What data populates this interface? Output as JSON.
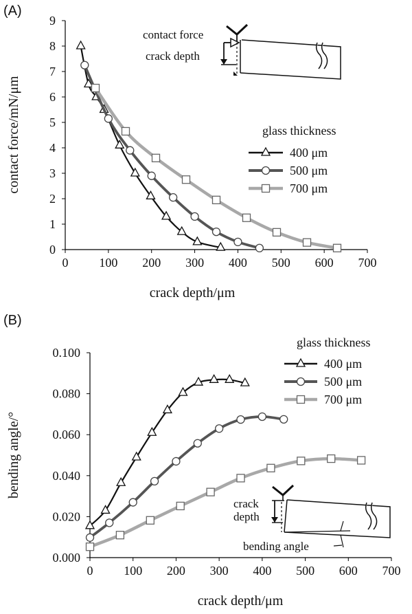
{
  "chart_data": [
    {
      "panel_label": "(A)",
      "type": "line",
      "xlabel": "crack depth/μm",
      "ylabel": "contact force/mN/μm",
      "xlim": [
        0,
        700
      ],
      "ylim": [
        0,
        9
      ],
      "xticks": [
        "0",
        "100",
        "200",
        "300",
        "400",
        "500",
        "600",
        "700"
      ],
      "yticks": [
        "0",
        "1",
        "2",
        "3",
        "4",
        "5",
        "6",
        "7",
        "8",
        "9"
      ],
      "legend_title": "glass thickness",
      "legend_position": "right",
      "inset_labels": [
        "contact force",
        "crack depth"
      ],
      "series": [
        {
          "name": "400 μm",
          "marker": "triangle",
          "color": "#111111",
          "x": [
            36,
            54,
            72,
            90,
            126,
            162,
            198,
            234,
            270,
            306,
            360
          ],
          "y": [
            8.0,
            6.5,
            6.0,
            5.5,
            4.1,
            3.0,
            2.1,
            1.3,
            0.7,
            0.3,
            0.08
          ]
        },
        {
          "name": "500 μm",
          "marker": "circle",
          "color": "#555555",
          "x": [
            45,
            100,
            150,
            200,
            250,
            300,
            350,
            400,
            450
          ],
          "y": [
            7.25,
            5.15,
            3.9,
            2.9,
            2.05,
            1.3,
            0.7,
            0.3,
            0.06
          ]
        },
        {
          "name": "700 μm",
          "marker": "square",
          "color": "#a8a8a8",
          "x": [
            70,
            140,
            210,
            280,
            350,
            420,
            490,
            560,
            630
          ],
          "y": [
            6.35,
            4.65,
            3.6,
            2.75,
            1.95,
            1.25,
            0.68,
            0.28,
            0.06
          ]
        }
      ]
    },
    {
      "panel_label": "(B)",
      "type": "line",
      "xlabel": "crack depth/μm",
      "ylabel": "bending angle/°",
      "xlim": [
        0,
        700
      ],
      "ylim": [
        0,
        0.1
      ],
      "xticks": [
        "0",
        "100",
        "200",
        "300",
        "400",
        "500",
        "600",
        "700"
      ],
      "yticks": [
        "0.000",
        "0.020",
        "0.040",
        "0.060",
        "0.080",
        "0.100"
      ],
      "legend_title": "glass thickness",
      "legend_position": "top-right",
      "inset_labels": [
        "crack",
        "depth",
        "bending angle"
      ],
      "series": [
        {
          "name": "400 μm",
          "marker": "triangle",
          "color": "#111111",
          "x": [
            0,
            36,
            72,
            108,
            144,
            180,
            216,
            252,
            288,
            324,
            360
          ],
          "y": [
            0.0155,
            0.023,
            0.0365,
            0.049,
            0.061,
            0.072,
            0.0805,
            0.0855,
            0.0868,
            0.0868,
            0.0852
          ]
        },
        {
          "name": "500 μm",
          "marker": "circle",
          "color": "#555555",
          "x": [
            0,
            45,
            100,
            150,
            200,
            250,
            300,
            350,
            400,
            450
          ],
          "y": [
            0.0098,
            0.017,
            0.027,
            0.0373,
            0.047,
            0.0558,
            0.063,
            0.0674,
            0.0688,
            0.0675
          ]
        },
        {
          "name": "700 μm",
          "marker": "square",
          "color": "#a8a8a8",
          "x": [
            0,
            70,
            140,
            210,
            280,
            350,
            420,
            490,
            560,
            630
          ],
          "y": [
            0.0053,
            0.011,
            0.0182,
            0.0252,
            0.032,
            0.0388,
            0.0437,
            0.0472,
            0.0483,
            0.0475
          ]
        }
      ]
    }
  ]
}
